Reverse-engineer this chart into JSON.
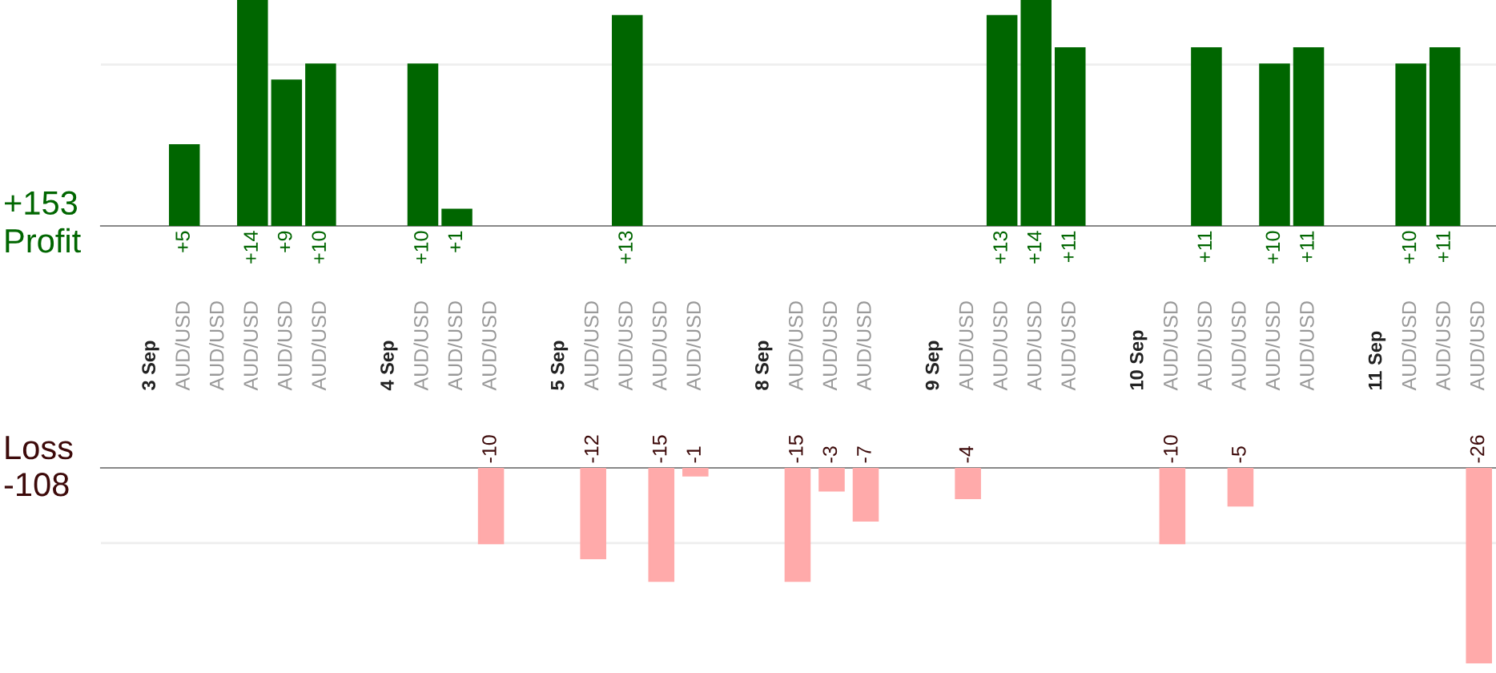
{
  "chart_data": [
    {
      "type": "bar",
      "ylabel": "Profit",
      "annotations": [
        "+153"
      ],
      "categories": [
        "3 Sep",
        "AUD/USD",
        "AUD/USD",
        "AUD/USD",
        "AUD/USD",
        "AUD/USD",
        null,
        "4 Sep",
        "AUD/USD",
        "AUD/USD",
        "AUD/USD",
        null,
        "5 Sep",
        "AUD/USD",
        "AUD/USD",
        "AUD/USD",
        "AUD/USD",
        null,
        "8 Sep",
        "AUD/USD",
        "AUD/USD",
        "AUD/USD",
        null,
        "9 Sep",
        "AUD/USD",
        "AUD/USD",
        "AUD/USD",
        "AUD/USD",
        null,
        "10 Sep",
        "AUD/USD",
        "AUD/USD",
        "AUD/USD",
        "AUD/USD",
        "AUD/USD",
        null,
        "11 Sep",
        "AUD/USD",
        "AUD/USD",
        "AUD/USD"
      ],
      "series": [
        {
          "color": "#006600",
          "values": [
            null,
            5,
            null,
            14,
            9,
            10,
            null,
            null,
            10,
            1,
            null,
            null,
            null,
            null,
            13,
            null,
            null,
            null,
            null,
            null,
            null,
            null,
            null,
            null,
            null,
            13,
            14,
            11,
            null,
            null,
            null,
            11,
            null,
            10,
            11,
            null,
            null,
            10,
            11,
            null
          ],
          "value_labels": [
            null,
            "+5",
            null,
            "+14",
            "+9",
            "+10",
            null,
            null,
            "+10",
            "+1",
            null,
            null,
            null,
            null,
            "+13",
            null,
            null,
            null,
            null,
            null,
            null,
            null,
            null,
            null,
            null,
            "+13",
            "+14",
            "+11",
            null,
            null,
            null,
            "+11",
            null,
            "+10",
            "+11",
            null,
            null,
            "+10",
            "+11",
            null
          ]
        }
      ],
      "ylim": [
        0,
        14
      ],
      "ref_lines": [
        {
          "axis": "y",
          "value": 10,
          "color": "#eeeeee"
        }
      ],
      "tick_labels": "x"
    },
    {
      "type": "bar",
      "ylabel": "Loss",
      "annotations": [
        "-108"
      ],
      "categories": [
        null,
        null,
        null,
        null,
        null,
        null,
        null,
        null,
        null,
        null,
        null,
        null,
        null,
        null,
        null,
        null,
        null,
        null,
        null,
        null,
        null,
        null,
        null,
        null,
        null,
        null,
        null,
        null,
        null,
        null,
        null,
        null,
        null,
        null,
        null,
        null,
        null,
        null,
        null,
        null
      ],
      "series": [
        {
          "color": "#ffaaaa",
          "values": [
            null,
            null,
            null,
            null,
            null,
            null,
            null,
            null,
            null,
            null,
            -10,
            null,
            null,
            -12,
            null,
            -15,
            -1,
            null,
            null,
            -15,
            -3,
            -7,
            null,
            null,
            -4,
            null,
            null,
            null,
            null,
            null,
            -10,
            null,
            -5,
            null,
            null,
            null,
            null,
            null,
            null,
            -26
          ],
          "value_labels": [
            null,
            null,
            null,
            null,
            null,
            null,
            null,
            null,
            null,
            null,
            "-10",
            null,
            null,
            "-12",
            null,
            "-15",
            "-1",
            null,
            null,
            "-15",
            "-3",
            "-7",
            null,
            null,
            "-4",
            null,
            null,
            null,
            null,
            null,
            "-10",
            null,
            "-5",
            null,
            null,
            null,
            null,
            null,
            null,
            "-26"
          ]
        }
      ],
      "ylim": [
        -26,
        0
      ],
      "ref_lines": [
        {
          "axis": "y",
          "value": -10,
          "color": "#eeeeee"
        }
      ],
      "tick_labels": false
    }
  ]
}
